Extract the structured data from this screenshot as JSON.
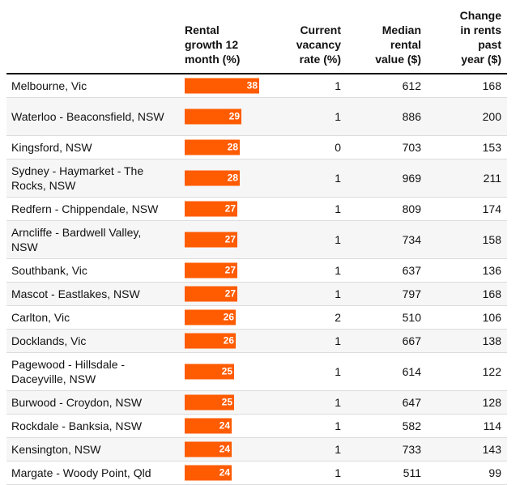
{
  "headers": {
    "growth": "Rental\ngrowth 12\nmonth (%)",
    "vacancy": "Current\nvacancy\nrate (%)",
    "median": "Median\nrental\nvalue ($)",
    "change": "Change\nin rents\npast\nyear ($)"
  },
  "colors": {
    "bar": "#ff5b00",
    "stripe": "#f6f6f6",
    "rule": "#121212"
  },
  "chart_data": {
    "type": "table",
    "columns": [
      "",
      "Rental growth 12 month (%)",
      "Current vacancy rate (%)",
      "Median rental value ($)",
      "Change in rents past year ($)"
    ],
    "bar_column": "growth",
    "rows": [
      {
        "area": "Melbourne, Vic",
        "growth": 38,
        "vacancy": 1,
        "median": 612,
        "change": 168
      },
      {
        "area": "Waterloo - Beaconsfield, NSW",
        "growth": 29,
        "vacancy": 1,
        "median": 886,
        "change": 200
      },
      {
        "area": "Kingsford, NSW",
        "growth": 28,
        "vacancy": 0,
        "median": 703,
        "change": 153
      },
      {
        "area": "Sydney - Haymarket - The Rocks, NSW",
        "growth": 28,
        "vacancy": 1,
        "median": 969,
        "change": 211
      },
      {
        "area": "Redfern - Chippendale, NSW",
        "growth": 27,
        "vacancy": 1,
        "median": 809,
        "change": 174
      },
      {
        "area": "Arncliffe - Bardwell Valley, NSW",
        "growth": 27,
        "vacancy": 1,
        "median": 734,
        "change": 158
      },
      {
        "area": "Southbank, Vic",
        "growth": 27,
        "vacancy": 1,
        "median": 637,
        "change": 136
      },
      {
        "area": "Mascot - Eastlakes, NSW",
        "growth": 27,
        "vacancy": 1,
        "median": 797,
        "change": 168
      },
      {
        "area": "Carlton, Vic",
        "growth": 26,
        "vacancy": 2,
        "median": 510,
        "change": 106
      },
      {
        "area": "Docklands, Vic",
        "growth": 26,
        "vacancy": 1,
        "median": 667,
        "change": 138
      },
      {
        "area": "Pagewood - Hillsdale - Daceyville, NSW",
        "growth": 25,
        "vacancy": 1,
        "median": 614,
        "change": 122
      },
      {
        "area": "Burwood - Croydon, NSW",
        "growth": 25,
        "vacancy": 1,
        "median": 647,
        "change": 128
      },
      {
        "area": "Rockdale - Banksia, NSW",
        "growth": 24,
        "vacancy": 1,
        "median": 582,
        "change": 114
      },
      {
        "area": "Kensington, NSW",
        "growth": 24,
        "vacancy": 1,
        "median": 733,
        "change": 143
      },
      {
        "area": "Margate - Woody Point, Qld",
        "growth": 24,
        "vacancy": 1,
        "median": 511,
        "change": 99
      }
    ]
  }
}
